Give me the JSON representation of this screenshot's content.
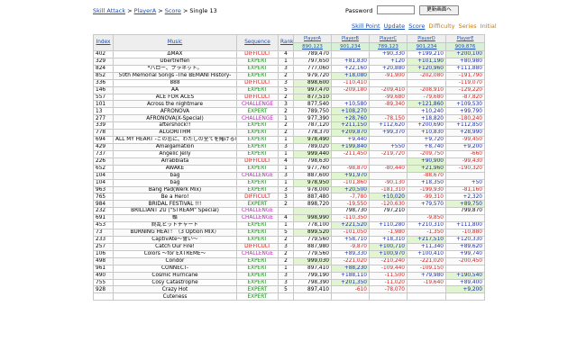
{
  "breadcrumb": [
    "Skill Attack",
    "PlayerA",
    "Score",
    "Single 13"
  ],
  "password": {
    "label": "Password",
    "value": ""
  },
  "go_button": "更新画面へ",
  "navlinks": {
    "links": [
      "Skill Point",
      "Update",
      "Score"
    ],
    "plain": [
      "Difficulty",
      "Series",
      "Initial"
    ]
  },
  "headers": {
    "index": "Index",
    "music": "Music",
    "sequence": "Sequence",
    "rank": "Rank",
    "players": [
      {
        "name": "PlayerA",
        "total": "890,123"
      },
      {
        "name": "PlayerB",
        "total": "901,234"
      },
      {
        "name": "PlayerC",
        "total": "789,123"
      },
      {
        "name": "PlayerD",
        "total": "901,234"
      },
      {
        "name": "PlayerE",
        "total": "909,876"
      }
    ]
  },
  "rows": [
    {
      "index": "402",
      "music": "ΔMAX",
      "seq": "DIFFICULT",
      "rank": "4",
      "p": [
        "789,470",
        "",
        "+90,330",
        "+199,210",
        "+200,100"
      ],
      "best": 4
    },
    {
      "index": "329",
      "music": "Übertreffen",
      "seq": "EXPERT",
      "rank": "1",
      "p": [
        "797,650",
        "+81,830",
        "+120",
        "+101,190",
        "+80,980"
      ],
      "best": 3
    },
    {
      "index": "824",
      "music": "*ハロー、プラネット。",
      "seq": "EXPERT",
      "rank": "3",
      "p": [
        "777,060",
        "+22,160",
        "+20,880",
        "+120,960",
        "+111,880"
      ],
      "best": 3
    },
    {
      "index": "852",
      "music": "50th Memorial Songs -The BEMANI History-",
      "seq": "EXPERT",
      "rank": "2",
      "p": [
        "979,720",
        "+18,080",
        "-91,900",
        "-202,080",
        "-191,790"
      ],
      "best": 1
    },
    {
      "index": "336",
      "music": "888",
      "seq": "DIFFICULT",
      "rank": "3",
      "p": [
        "898,600",
        "-110,410",
        "",
        "",
        "-119,070"
      ],
      "best": 0
    },
    {
      "index": "146",
      "music": "AA",
      "seq": "EXPERT",
      "rank": "5",
      "p": [
        "997,470",
        "-209,180",
        "-209,410",
        "-208,910",
        "-129,220"
      ],
      "best": 0
    },
    {
      "index": "557",
      "music": "ACE FOR ACES",
      "seq": "DIFFICULT",
      "rank": "2",
      "p": [
        "877,510",
        "",
        "-99,680",
        "-79,680",
        "-87,820"
      ],
      "best": 0
    },
    {
      "index": "101",
      "music": "Across the nightmare",
      "seq": "CHALLENGE",
      "rank": "3",
      "p": [
        "877,540",
        "+10,580",
        "-89,340",
        "+121,860",
        "+109,530"
      ],
      "best": 3
    },
    {
      "index": "13",
      "music": "AFRONOVA",
      "seq": "EXPERT",
      "rank": "2",
      "p": [
        "789,750",
        "+108,270",
        "",
        "+10,240",
        "+99,790"
      ],
      "best": 1
    },
    {
      "index": "277",
      "music": "AFRONOVA(X-Special)",
      "seq": "CHALLENGE",
      "rank": "1",
      "p": [
        "977,390",
        "+28,760",
        "-78,150",
        "+18,820",
        "-180,240"
      ],
      "best": 1
    },
    {
      "index": "339",
      "music": "aftershock!!",
      "seq": "EXPERT",
      "rank": "2",
      "p": [
        "787,120",
        "+211,150",
        "+112,620",
        "+200,690",
        "+112,850"
      ],
      "best": 1
    },
    {
      "index": "778",
      "music": "ALGORITHM",
      "seq": "EXPERT",
      "rank": "2",
      "p": [
        "778,370",
        "+209,870",
        "+99,370",
        "+10,830",
        "+28,990"
      ],
      "best": 1
    },
    {
      "index": "694",
      "music": "ALL MY HEART -この恋に、わたしの全てを賭けるの-",
      "seq": "EXPERT",
      "rank": "1",
      "p": [
        "978,490",
        "+9,440",
        "",
        "+9,720",
        "-99,450"
      ],
      "best": 0
    },
    {
      "index": "429",
      "music": "Amalgamation",
      "seq": "EXPERT",
      "rank": "3",
      "p": [
        "789,020",
        "+199,840",
        "+550",
        "+8,740",
        "+9,200"
      ],
      "best": 1
    },
    {
      "index": "737",
      "music": "Angelic Jelly",
      "seq": "EXPERT",
      "rank": "1",
      "p": [
        "999,440",
        "-211,450",
        "-219,720",
        "-209,750",
        "-660"
      ],
      "best": 0
    },
    {
      "index": "226",
      "music": "Arrabbiata",
      "seq": "DIFFICULT",
      "rank": "4",
      "p": [
        "798,630",
        "",
        "",
        "+90,900",
        "-99,430"
      ],
      "best": 3
    },
    {
      "index": "652",
      "music": "AWAKE",
      "seq": "EXPERT",
      "rank": "1",
      "p": [
        "977,760",
        "-98,870",
        "-80,440",
        "+21,960",
        "-190,320"
      ],
      "best": 3
    },
    {
      "index": "104",
      "music": "bag",
      "seq": "CHALLENGE",
      "rank": "3",
      "p": [
        "887,600",
        "+91,970",
        "",
        "-88,670",
        ""
      ],
      "best": 1
    },
    {
      "index": "104",
      "music": "bag",
      "seq": "EXPERT",
      "rank": "1",
      "p": [
        "978,950",
        "-101,860",
        "-90,130",
        "+18,350",
        "+50"
      ],
      "best": 0
    },
    {
      "index": "963",
      "music": "Bang Pad(Werk Mix)",
      "seq": "EXPERT",
      "rank": "3",
      "p": [
        "978,000",
        "+20,500",
        "-181,310",
        "-199,930",
        "-81,160"
      ],
      "best": 1
    },
    {
      "index": "765",
      "music": "Be a Hero!",
      "seq": "DIFFICULT",
      "rank": "3",
      "p": [
        "887,480",
        "-7,780",
        "+10,020",
        "-99,310",
        "+2,320"
      ],
      "best": 2
    },
    {
      "index": "984",
      "music": "BRIDAL FESTIVAL !!!",
      "seq": "EXPERT",
      "rank": "2",
      "p": [
        "898,720",
        "-19,550",
        "-120,630",
        "+79,570",
        "+89,750"
      ],
      "best": 4
    },
    {
      "index": "232",
      "music": "BRILLIANT 2U (\"STREAM\" Special)",
      "seq": "CHALLENGE",
      "rank": "",
      "p": [
        "",
        "798,730",
        "797,210",
        "",
        "799,870"
      ],
      "best": 0
    },
    {
      "index": "691",
      "music": "蝶",
      "seq": "CHALLENGE",
      "rank": "4",
      "p": [
        "998,990",
        "-110,350",
        "",
        "-9,850",
        ""
      ],
      "best": 0
    },
    {
      "index": "453",
      "music": "終乱ヒットチャート",
      "seq": "EXPERT",
      "rank": "1",
      "p": [
        "778,100",
        "+221,520",
        "+110,280",
        "+210,310",
        "+111,800"
      ],
      "best": 1
    },
    {
      "index": "73",
      "music": "BURNING HEAT！（3 Option MIX）",
      "seq": "EXPERT",
      "rank": "5",
      "p": [
        "899,520",
        "-101,050",
        "-1,980",
        "-1,350",
        "-10,880"
      ],
      "best": 0
    },
    {
      "index": "233",
      "music": "CaptivAte〜誓い〜",
      "seq": "EXPERT",
      "rank": "2",
      "p": [
        "779,560",
        "+58,710",
        "+18,310",
        "+217,510",
        "+120,330"
      ],
      "best": 3
    },
    {
      "index": "257",
      "music": "Catch Our Fire!",
      "seq": "DIFFICULT",
      "rank": "3",
      "p": [
        "887,980",
        "-9,870",
        "+100,710",
        "+11,340",
        "+89,620"
      ],
      "best": 2
    },
    {
      "index": "106",
      "music": "Colors 〜for EXTREME〜",
      "seq": "CHALLENGE",
      "rank": "2",
      "p": [
        "779,560",
        "+89,330",
        "+100,970",
        "+100,410",
        "+99,740"
      ],
      "best": 2
    },
    {
      "index": "498",
      "music": "Condor",
      "seq": "EXPERT",
      "rank": "2",
      "p": [
        "999,030",
        "-221,020",
        "-210,240",
        "-221,020",
        "-200,450"
      ],
      "best": 0
    },
    {
      "index": "961",
      "music": "CONNECT-",
      "seq": "EXPERT",
      "rank": "1",
      "p": [
        "897,410",
        "+88,230",
        "-109,440",
        "-109,150",
        ""
      ],
      "best": 1
    },
    {
      "index": "490",
      "music": "Cosmic Hurricane",
      "seq": "EXPERT",
      "rank": "3",
      "p": [
        "799,190",
        "+188,110",
        "-11,500",
        "+79,980",
        "+190,540"
      ],
      "best": 4
    },
    {
      "index": "755",
      "music": "Cosy Catastrophe",
      "seq": "EXPERT",
      "rank": "3",
      "p": [
        "798,390",
        "+201,350",
        "-11,020",
        "-19,640",
        "+89,400"
      ],
      "best": 1
    },
    {
      "index": "928",
      "music": "Crazy Hot",
      "seq": "EXPERT",
      "rank": "5",
      "p": [
        "897,410",
        "-610",
        "-78,070",
        "",
        "+9,200"
      ],
      "best": 4
    },
    {
      "index": "",
      "music": "Cuteness",
      "seq": "EXPERT",
      "rank": "",
      "p": [
        "",
        "",
        "",
        "",
        ""
      ],
      "best": -1
    }
  ]
}
